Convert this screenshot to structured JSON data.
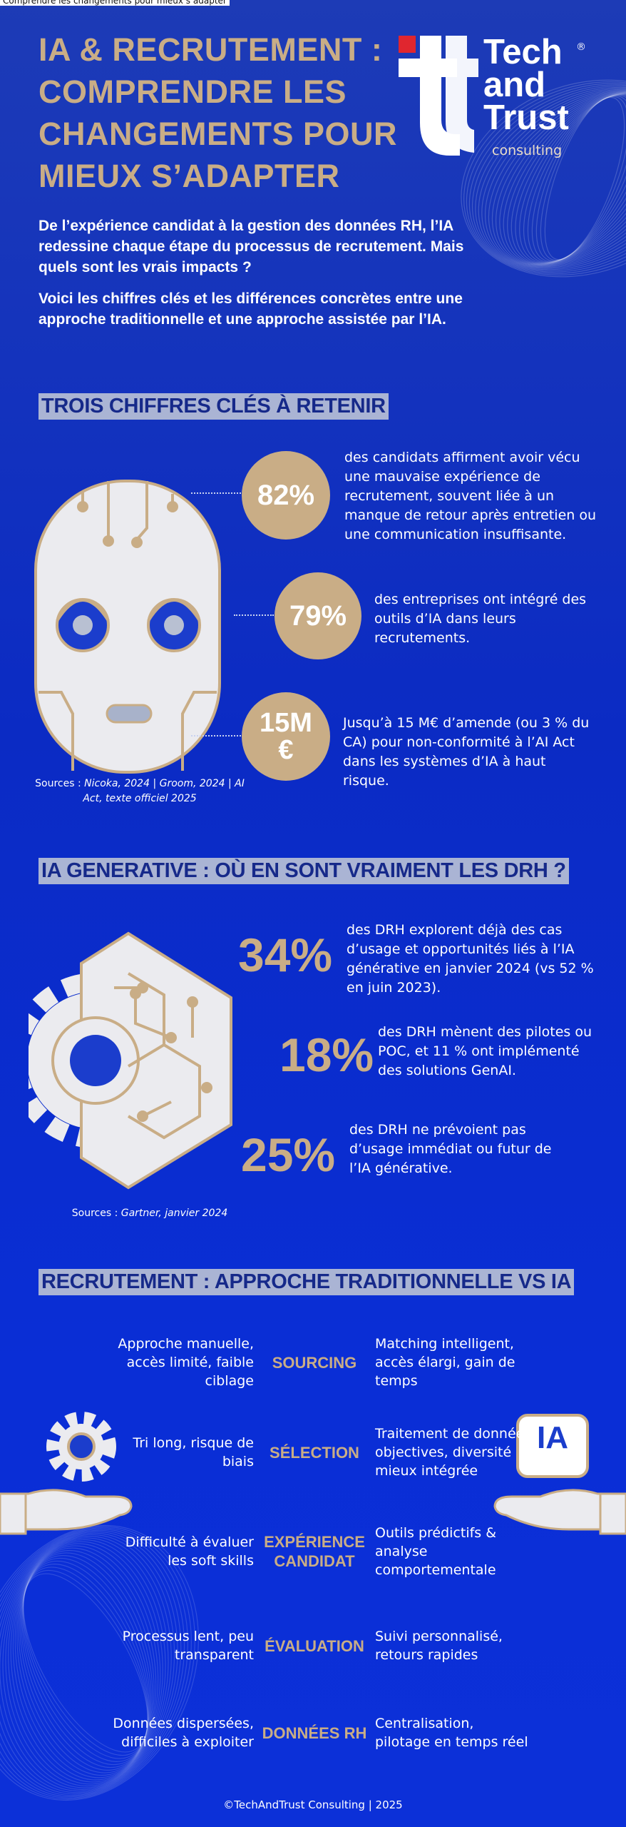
{
  "tab_title": "Comprendre les changements pour mieux s’adapter",
  "header": {
    "title_lines": [
      "IA & RECRUTEMENT :",
      "COMPRENDRE LES",
      "CHANGEMENTS POUR",
      "MIEUX S’ADAPTER"
    ],
    "logo": {
      "brand_lines": [
        "Tech",
        "and",
        "Trust"
      ],
      "registered": "®",
      "tagline": "consulting"
    }
  },
  "intro": [
    "De l’expérience candidat à la gestion des données RH, l’IA redessine chaque étape du processus de recrutement. Mais quels sont les vrais impacts ?",
    "Voici les chiffres clés et les différences concrètes entre une approche traditionnelle et une approche assistée par l’IA."
  ],
  "key_figures": {
    "heading": "TROIS CHIFFRES CLÉS À RETENIR",
    "items": [
      {
        "figure": "82%",
        "text": "des candidats affirment avoir vécu une mauvaise expérience de recrutement, souvent liée à un manque de retour après entretien ou une communication insuffisante."
      },
      {
        "figure": "79%",
        "text": "des entreprises ont intégré des outils d’IA dans leurs recrutements."
      },
      {
        "figure": "15M €",
        "text": "Jusqu’à 15 M€ d’amende (ou 3 % du CA) pour non-conformité à l’AI Act dans les systèmes d’IA à haut risque."
      }
    ],
    "sources_label": "Sources :",
    "sources": "Nicoka, 2024 | Groom, 2024 | AI Act, texte officiel 2025"
  },
  "genai": {
    "heading": "IA GENERATIVE : OÙ EN SONT VRAIMENT LES DRH ?",
    "items": [
      {
        "figure": "34%",
        "text": "des DRH explorent déjà des cas d’usage et opportunités liés à l’IA générative en janvier 2024 (vs 52 % en juin 2023)."
      },
      {
        "figure": "18%",
        "text": "des DRH mènent des pilotes ou POC, et 11 % ont implémenté des solutions GenAI."
      },
      {
        "figure": "25%",
        "text": "des DRH ne prévoient pas d’usage immédiat ou futur de l’IA générative."
      }
    ],
    "sources_label": "Sources :",
    "sources": "Gartner, janvier 2024"
  },
  "comparison": {
    "heading": "RECRUTEMENT : APPROCHE TRADITIONNELLE VS IA",
    "ai_badge": "IA",
    "rows": [
      {
        "traditional": "Approche manuelle, accès limité, faible ciblage",
        "stage": "SOURCING",
        "ai": "Matching intelligent, accès élargi, gain de temps"
      },
      {
        "traditional": "Tri long, risque de biais",
        "stage": "SÉLECTION",
        "ai": "Traitement de données objectives, diversité mieux intégrée"
      },
      {
        "traditional": "Difficulté à évaluer les soft skills",
        "stage": "EXPÉRIENCE CANDIDAT",
        "ai": "Outils prédictifs & analyse comportementale"
      },
      {
        "traditional": "Processus lent, peu transparent",
        "stage": "ÉVALUATION",
        "ai": "Suivi personnalisé, retours rapides"
      },
      {
        "traditional": "Données dispersées, difficiles à exploiter",
        "stage": "DONNÉES RH",
        "ai": "Centralisation, pilotage en temps réel"
      }
    ]
  },
  "footer": "©TechAndTrust Consulting | 2025"
}
